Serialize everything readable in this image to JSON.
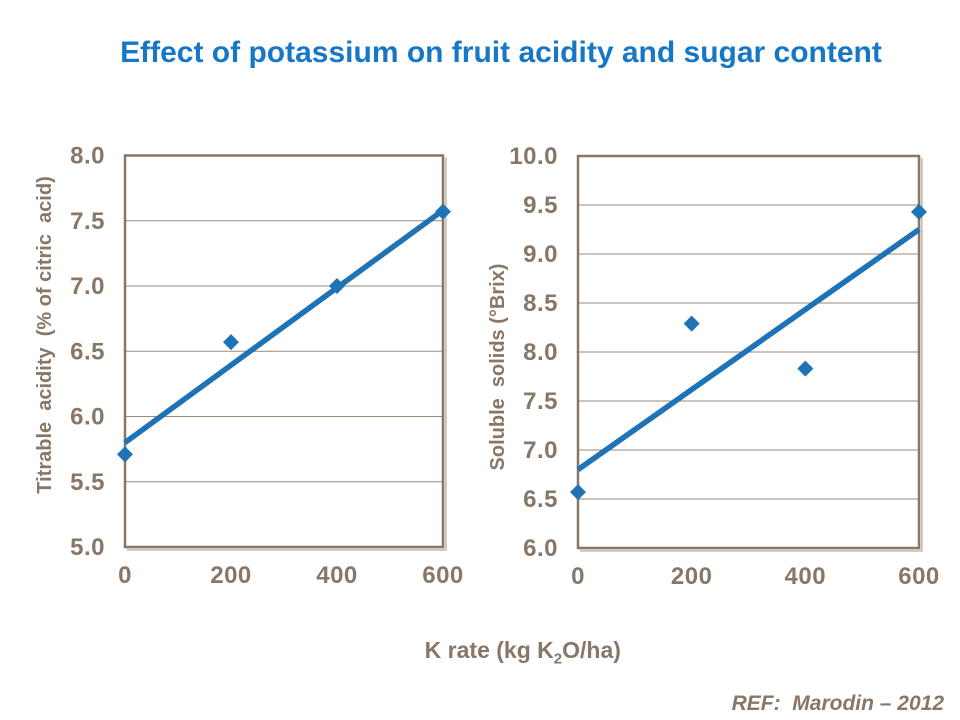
{
  "page": {
    "title": "Effect of potassium on fruit acidity and sugar content",
    "reference": "REF:  Marodin – 2012"
  },
  "x_axis_label": {
    "pre": "K rate (kg K",
    "sub": "2",
    "post": "O/ha)"
  },
  "colors": {
    "title_blue": "#1677C8",
    "chart_blue": "#1E72B6",
    "axis_brown": "#887767",
    "grid_brown": "#9A8A79",
    "frame_shadow": "#CCC1B2"
  },
  "chart_data": [
    {
      "type": "scatter",
      "title": "",
      "ylabel": "Titrable  acidity  (% of citric  acid)",
      "xlabel": "K rate (kg K2O/ha)",
      "x": [
        0,
        200,
        400,
        600
      ],
      "series": [
        {
          "name": "Titrable acidity",
          "values": [
            5.71,
            6.57,
            7.0,
            7.57
          ]
        }
      ],
      "trendline": {
        "x1": 0,
        "y1": 5.8,
        "x2": 600,
        "y2": 7.58
      },
      "xlim": [
        0,
        600
      ],
      "ylim": [
        5.0,
        8.0
      ],
      "ytick_step": 0.5,
      "xticks": [
        0,
        200,
        400,
        600
      ],
      "grid": "horizontal",
      "legend": "none"
    },
    {
      "type": "scatter",
      "title": "",
      "ylabel": "Soluble  solids (°Brix)",
      "xlabel": "K rate (kg K2O/ha)",
      "x": [
        0,
        200,
        400,
        600
      ],
      "series": [
        {
          "name": "Soluble solids",
          "values": [
            6.57,
            8.29,
            7.83,
            9.43
          ]
        }
      ],
      "trendline": {
        "x1": 0,
        "y1": 6.8,
        "x2": 600,
        "y2": 9.25
      },
      "xlim": [
        0,
        600
      ],
      "ylim": [
        6.0,
        10.0
      ],
      "ytick_step": 0.5,
      "xticks": [
        0,
        200,
        400,
        600
      ],
      "grid": "horizontal",
      "legend": "none"
    }
  ]
}
